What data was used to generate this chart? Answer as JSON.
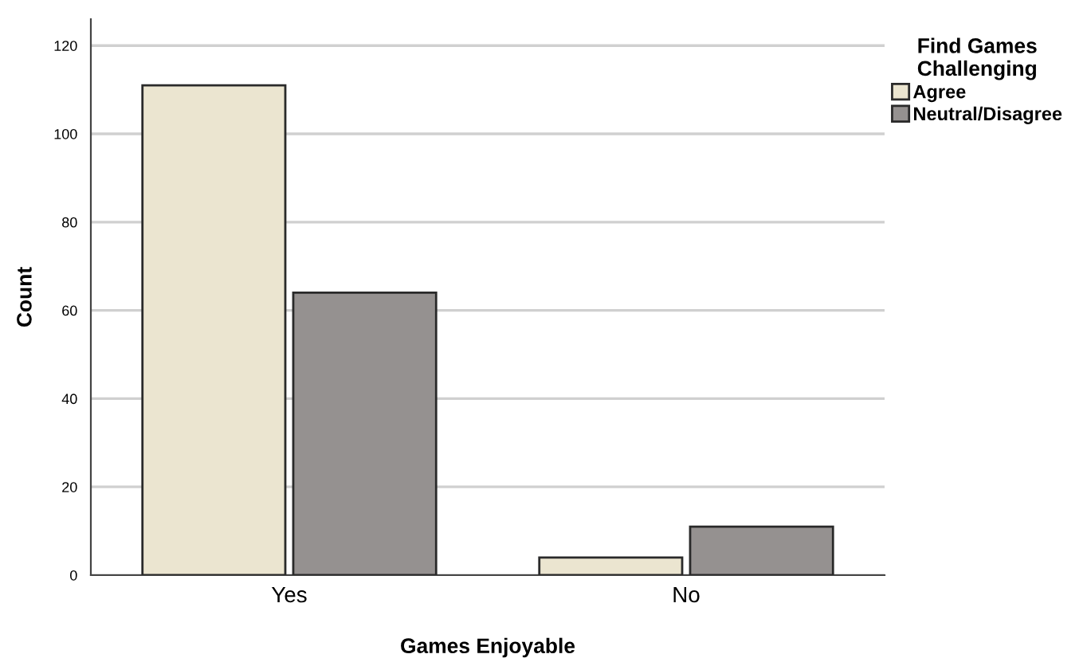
{
  "chart_data": {
    "type": "bar",
    "xlabel": "Games Enjoyable",
    "ylabel": "Count",
    "legend_title": "Find Games\nChallenging",
    "categories": [
      "Yes",
      "No"
    ],
    "series": [
      {
        "name": "Agree",
        "color": "#ebe5d0",
        "values": [
          111,
          4
        ]
      },
      {
        "name": "Neutral/Disagree",
        "color": "#959190",
        "values": [
          64,
          11
        ]
      }
    ],
    "ylim": [
      0,
      126
    ],
    "yticks": [
      0,
      20,
      40,
      60,
      80,
      100,
      120
    ],
    "grid": "y",
    "legend": "top right"
  }
}
